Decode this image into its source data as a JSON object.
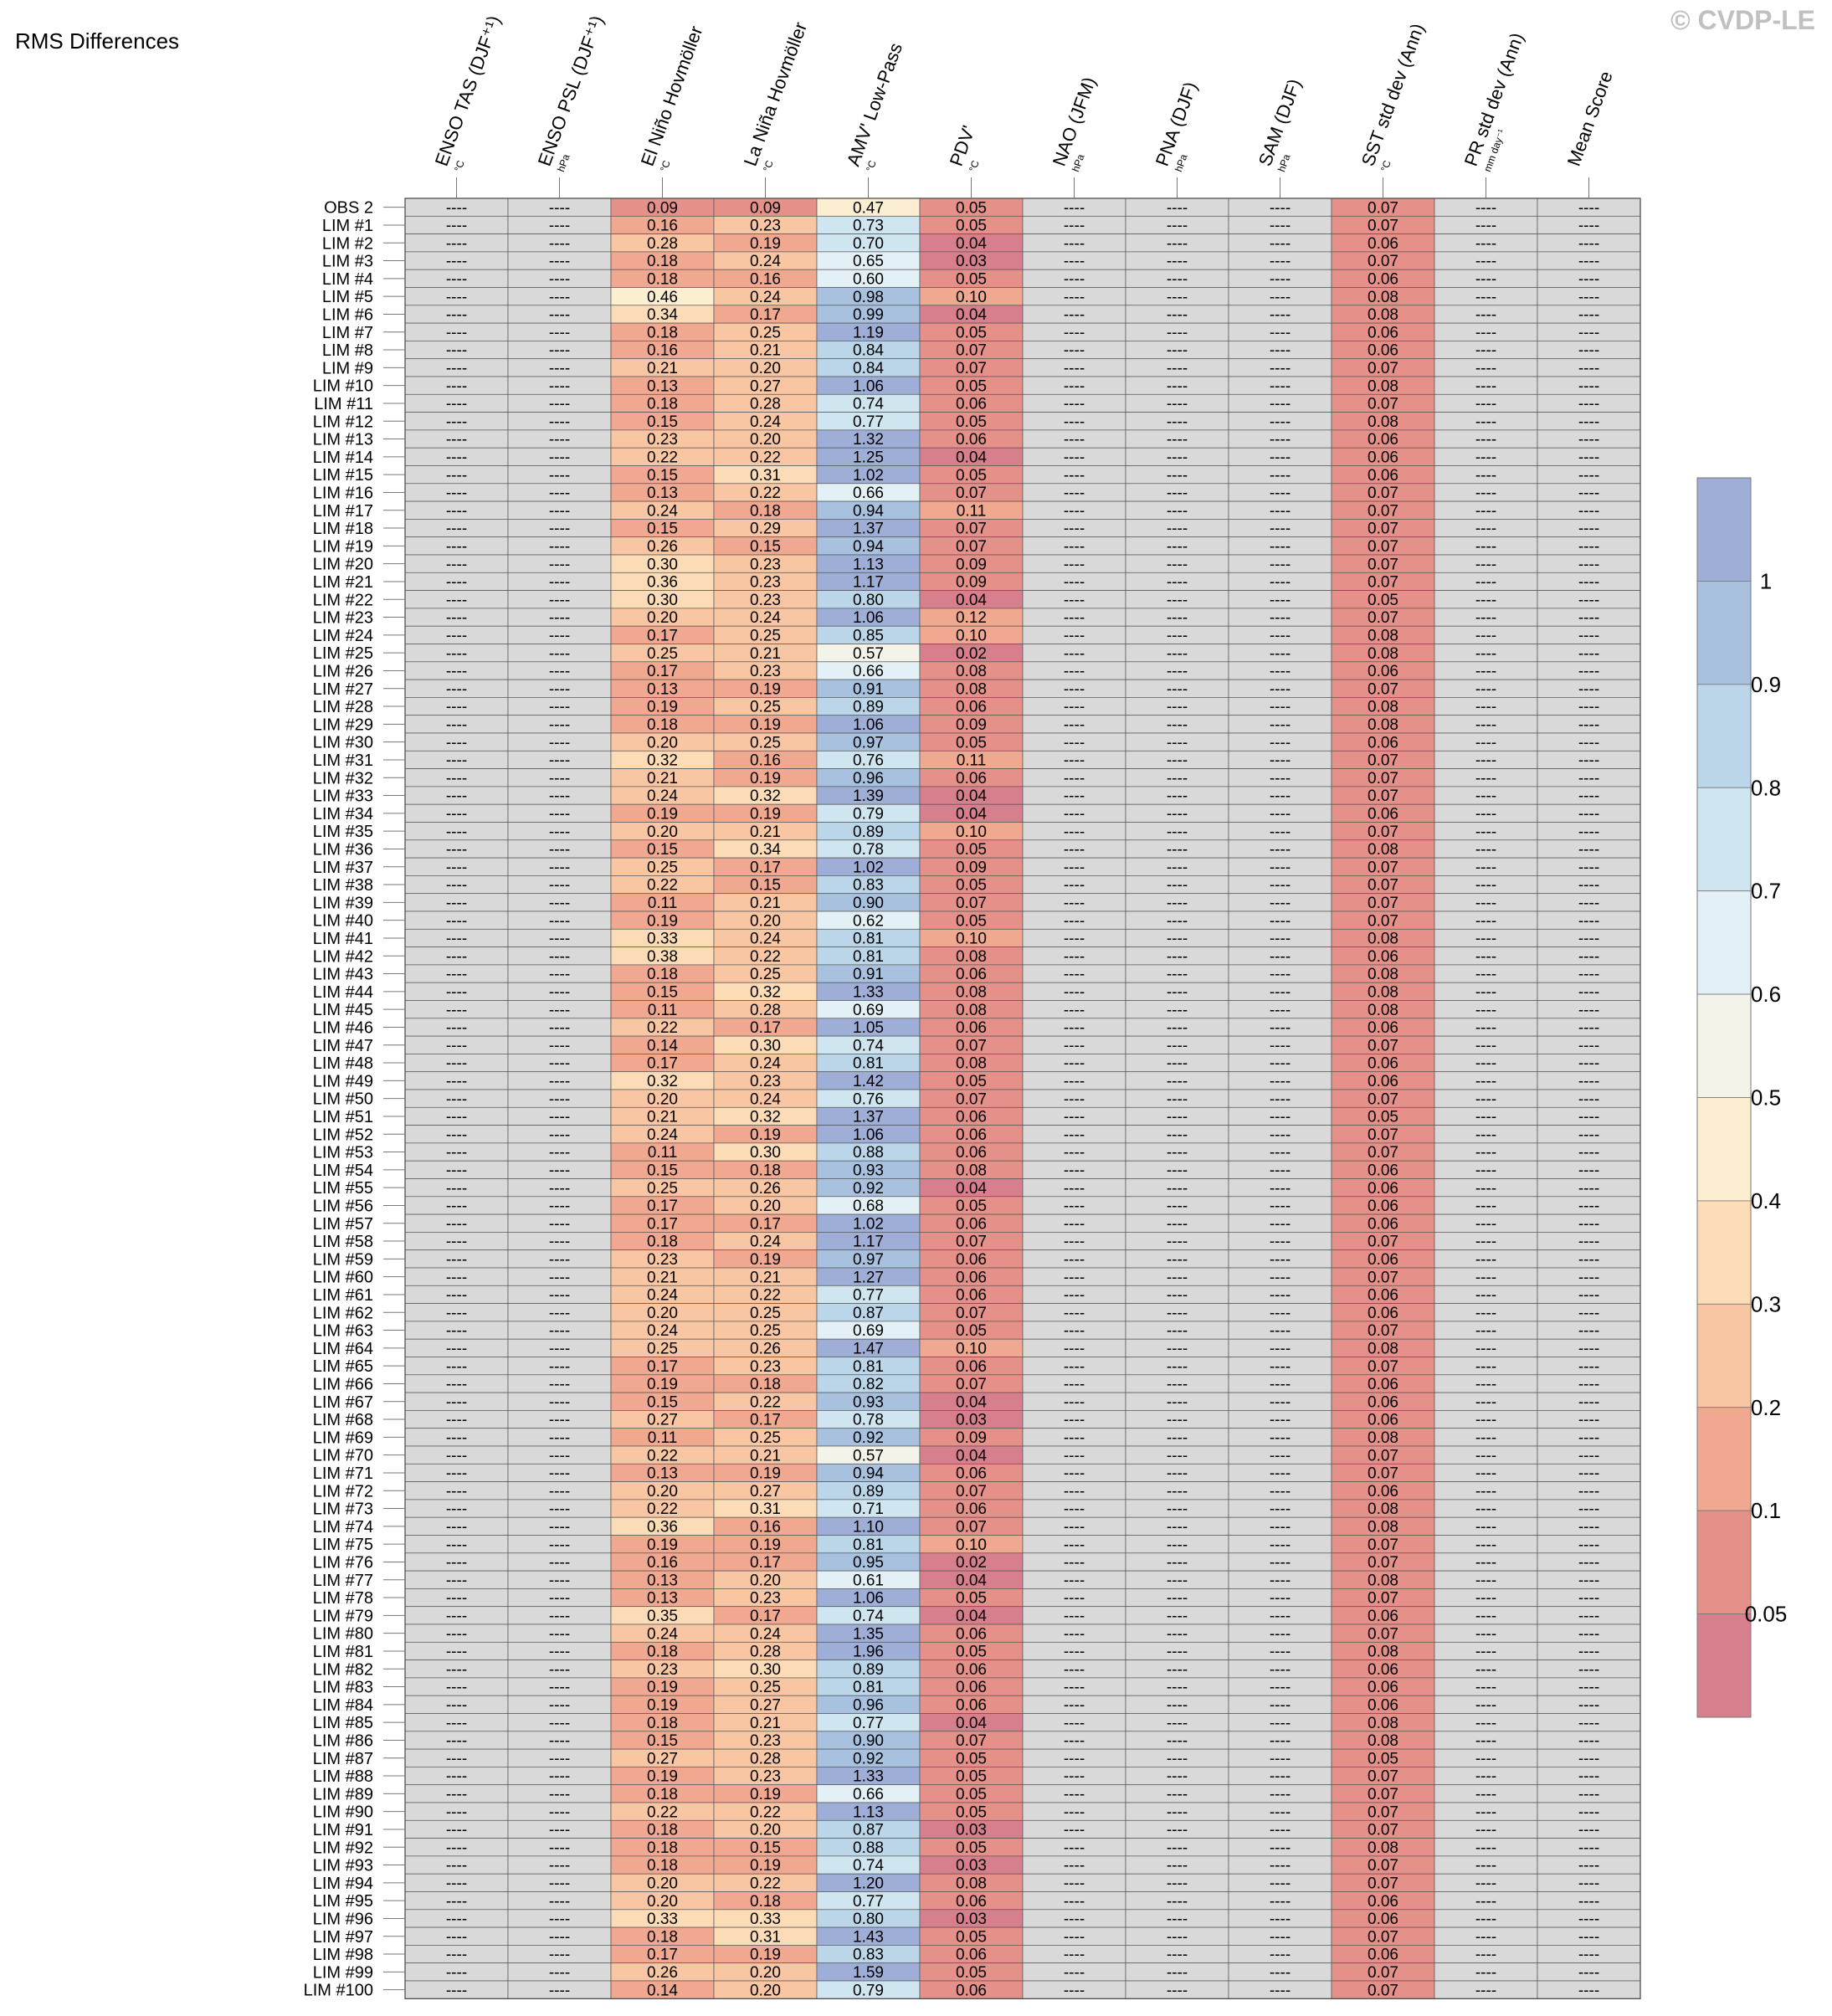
{
  "title": "RMS Differences",
  "watermark": "© CVDP-LE",
  "chart_data": {
    "type": "heatmap",
    "columns": [
      {
        "label": "ENSO TAS (DJF⁺¹)",
        "unit": "°C"
      },
      {
        "label": "ENSO PSL (DJF⁺¹)",
        "unit": "hPa"
      },
      {
        "label": "El Niño Hovmöller",
        "unit": "°C"
      },
      {
        "label": "La Niña Hovmöller",
        "unit": "°C"
      },
      {
        "label": "AMV' Low-Pass",
        "unit": "°C"
      },
      {
        "label": "PDV'",
        "unit": "°C"
      },
      {
        "label": "NAO (JFM)",
        "unit": "hPa"
      },
      {
        "label": "PNA (DJF)",
        "unit": "hPa"
      },
      {
        "label": "SAM (DJF)",
        "unit": "hPa"
      },
      {
        "label": "SST std dev (Ann)",
        "unit": "°C"
      },
      {
        "label": "PR std dev (Ann)",
        "unit": "mm day⁻¹"
      },
      {
        "label": "Mean Score",
        "unit": ""
      }
    ],
    "missing_text": "----",
    "rows": [
      "OBS 2",
      "LIM #1",
      "LIM #2",
      "LIM #3",
      "LIM #4",
      "LIM #5",
      "LIM #6",
      "LIM #7",
      "LIM #8",
      "LIM #9",
      "LIM #10",
      "LIM #11",
      "LIM #12",
      "LIM #13",
      "LIM #14",
      "LIM #15",
      "LIM #16",
      "LIM #17",
      "LIM #18",
      "LIM #19",
      "LIM #20",
      "LIM #21",
      "LIM #22",
      "LIM #23",
      "LIM #24",
      "LIM #25",
      "LIM #26",
      "LIM #27",
      "LIM #28",
      "LIM #29",
      "LIM #30",
      "LIM #31",
      "LIM #32",
      "LIM #33",
      "LIM #34",
      "LIM #35",
      "LIM #36",
      "LIM #37",
      "LIM #38",
      "LIM #39",
      "LIM #40",
      "LIM #41",
      "LIM #42",
      "LIM #43",
      "LIM #44",
      "LIM #45",
      "LIM #46",
      "LIM #47",
      "LIM #48",
      "LIM #49",
      "LIM #50",
      "LIM #51",
      "LIM #52",
      "LIM #53",
      "LIM #54",
      "LIM #55",
      "LIM #56",
      "LIM #57",
      "LIM #58",
      "LIM #59",
      "LIM #60",
      "LIM #61",
      "LIM #62",
      "LIM #63",
      "LIM #64",
      "LIM #65",
      "LIM #66",
      "LIM #67",
      "LIM #68",
      "LIM #69",
      "LIM #70",
      "LIM #71",
      "LIM #72",
      "LIM #73",
      "LIM #74",
      "LIM #75",
      "LIM #76",
      "LIM #77",
      "LIM #78",
      "LIM #79",
      "LIM #80",
      "LIM #81",
      "LIM #82",
      "LIM #83",
      "LIM #84",
      "LIM #85",
      "LIM #86",
      "LIM #87",
      "LIM #88",
      "LIM #89",
      "LIM #90",
      "LIM #91",
      "LIM #92",
      "LIM #93",
      "LIM #94",
      "LIM #95",
      "LIM #96",
      "LIM #97",
      "LIM #98",
      "LIM #99",
      "LIM #100"
    ],
    "values": {
      "El Niño Hovmöller": [
        "0.09",
        "0.16",
        "0.28",
        "0.18",
        "0.18",
        "0.46",
        "0.34",
        "0.18",
        "0.16",
        "0.21",
        "0.13",
        "0.18",
        "0.15",
        "0.23",
        "0.22",
        "0.15",
        "0.13",
        "0.24",
        "0.15",
        "0.26",
        "0.30",
        "0.36",
        "0.30",
        "0.20",
        "0.17",
        "0.25",
        "0.17",
        "0.13",
        "0.19",
        "0.18",
        "0.20",
        "0.32",
        "0.21",
        "0.24",
        "0.19",
        "0.20",
        "0.15",
        "0.25",
        "0.22",
        "0.11",
        "0.19",
        "0.33",
        "0.38",
        "0.18",
        "0.15",
        "0.11",
        "0.22",
        "0.14",
        "0.17",
        "0.32",
        "0.20",
        "0.21",
        "0.24",
        "0.11",
        "0.15",
        "0.25",
        "0.17",
        "0.17",
        "0.18",
        "0.23",
        "0.21",
        "0.24",
        "0.20",
        "0.24",
        "0.25",
        "0.17",
        "0.19",
        "0.15",
        "0.27",
        "0.11",
        "0.22",
        "0.13",
        "0.20",
        "0.22",
        "0.36",
        "0.19",
        "0.16",
        "0.13",
        "0.13",
        "0.35",
        "0.24",
        "0.18",
        "0.23",
        "0.19",
        "0.19",
        "0.18",
        "0.15",
        "0.27",
        "0.19",
        "0.18",
        "0.22",
        "0.18",
        "0.18",
        "0.18",
        "0.20",
        "0.20",
        "0.33",
        "0.18",
        "0.17",
        "0.26",
        "0.14"
      ],
      "La Niña Hovmöller": [
        "0.09",
        "0.23",
        "0.19",
        "0.24",
        "0.16",
        "0.24",
        "0.17",
        "0.25",
        "0.21",
        "0.20",
        "0.27",
        "0.28",
        "0.24",
        "0.20",
        "0.22",
        "0.31",
        "0.22",
        "0.18",
        "0.29",
        "0.15",
        "0.23",
        "0.23",
        "0.23",
        "0.24",
        "0.25",
        "0.21",
        "0.23",
        "0.19",
        "0.25",
        "0.19",
        "0.25",
        "0.16",
        "0.19",
        "0.32",
        "0.19",
        "0.21",
        "0.34",
        "0.17",
        "0.15",
        "0.21",
        "0.20",
        "0.24",
        "0.22",
        "0.25",
        "0.32",
        "0.28",
        "0.17",
        "0.30",
        "0.24",
        "0.23",
        "0.24",
        "0.32",
        "0.19",
        "0.30",
        "0.18",
        "0.26",
        "0.20",
        "0.17",
        "0.24",
        "0.19",
        "0.21",
        "0.22",
        "0.25",
        "0.25",
        "0.26",
        "0.23",
        "0.18",
        "0.22",
        "0.17",
        "0.25",
        "0.21",
        "0.19",
        "0.27",
        "0.31",
        "0.16",
        "0.19",
        "0.17",
        "0.20",
        "0.23",
        "0.17",
        "0.24",
        "0.28",
        "0.30",
        "0.25",
        "0.27",
        "0.21",
        "0.23",
        "0.28",
        "0.23",
        "0.19",
        "0.22",
        "0.20",
        "0.15",
        "0.19",
        "0.22",
        "0.18",
        "0.33",
        "0.31",
        "0.19",
        "0.20",
        "0.20"
      ],
      "AMV' Low-Pass": [
        "0.47",
        "0.73",
        "0.70",
        "0.65",
        "0.60",
        "0.98",
        "0.99",
        "1.19",
        "0.84",
        "0.84",
        "1.06",
        "0.74",
        "0.77",
        "1.32",
        "1.25",
        "1.02",
        "0.66",
        "0.94",
        "1.37",
        "0.94",
        "1.13",
        "1.17",
        "0.80",
        "1.06",
        "0.85",
        "0.57",
        "0.66",
        "0.91",
        "0.89",
        "1.06",
        "0.97",
        "0.76",
        "0.96",
        "1.39",
        "0.79",
        "0.89",
        "0.78",
        "1.02",
        "0.83",
        "0.90",
        "0.62",
        "0.81",
        "0.81",
        "0.91",
        "1.33",
        "0.69",
        "1.05",
        "0.74",
        "0.81",
        "1.42",
        "0.76",
        "1.37",
        "1.06",
        "0.88",
        "0.93",
        "0.92",
        "0.68",
        "1.02",
        "1.17",
        "0.97",
        "1.27",
        "0.77",
        "0.87",
        "0.69",
        "1.47",
        "0.81",
        "0.82",
        "0.93",
        "0.78",
        "0.92",
        "0.57",
        "0.94",
        "0.89",
        "0.71",
        "1.10",
        "0.81",
        "0.95",
        "0.61",
        "1.06",
        "0.74",
        "1.35",
        "1.96",
        "0.89",
        "0.81",
        "0.96",
        "0.77",
        "0.90",
        "0.92",
        "1.33",
        "0.66",
        "1.13",
        "0.87",
        "0.88",
        "0.74",
        "1.20",
        "0.77",
        "0.80",
        "1.43",
        "0.83",
        "1.59",
        "0.79"
      ],
      "PDV'": [
        "0.05",
        "0.05",
        "0.04",
        "0.03",
        "0.05",
        "0.10",
        "0.04",
        "0.05",
        "0.07",
        "0.07",
        "0.05",
        "0.06",
        "0.05",
        "0.06",
        "0.04",
        "0.05",
        "0.07",
        "0.11",
        "0.07",
        "0.07",
        "0.09",
        "0.09",
        "0.04",
        "0.12",
        "0.10",
        "0.02",
        "0.08",
        "0.08",
        "0.06",
        "0.09",
        "0.05",
        "0.11",
        "0.06",
        "0.04",
        "0.04",
        "0.10",
        "0.05",
        "0.09",
        "0.05",
        "0.07",
        "0.05",
        "0.10",
        "0.08",
        "0.06",
        "0.08",
        "0.08",
        "0.06",
        "0.07",
        "0.08",
        "0.05",
        "0.07",
        "0.06",
        "0.06",
        "0.06",
        "0.08",
        "0.04",
        "0.05",
        "0.06",
        "0.07",
        "0.06",
        "0.06",
        "0.06",
        "0.07",
        "0.05",
        "0.10",
        "0.06",
        "0.07",
        "0.04",
        "0.03",
        "0.09",
        "0.04",
        "0.06",
        "0.07",
        "0.06",
        "0.07",
        "0.10",
        "0.02",
        "0.04",
        "0.05",
        "0.04",
        "0.06",
        "0.05",
        "0.06",
        "0.06",
        "0.06",
        "0.04",
        "0.07",
        "0.05",
        "0.05",
        "0.05",
        "0.05",
        "0.03",
        "0.05",
        "0.03",
        "0.08",
        "0.06",
        "0.03",
        "0.05",
        "0.06",
        "0.05",
        "0.06"
      ],
      "SST std dev (Ann)": [
        "0.07",
        "0.07",
        "0.06",
        "0.07",
        "0.06",
        "0.08",
        "0.08",
        "0.06",
        "0.06",
        "0.07",
        "0.08",
        "0.07",
        "0.08",
        "0.06",
        "0.06",
        "0.06",
        "0.07",
        "0.07",
        "0.07",
        "0.07",
        "0.07",
        "0.07",
        "0.05",
        "0.07",
        "0.08",
        "0.08",
        "0.06",
        "0.07",
        "0.08",
        "0.08",
        "0.06",
        "0.07",
        "0.07",
        "0.07",
        "0.06",
        "0.07",
        "0.08",
        "0.07",
        "0.07",
        "0.07",
        "0.07",
        "0.08",
        "0.06",
        "0.08",
        "0.08",
        "0.08",
        "0.06",
        "0.07",
        "0.06",
        "0.06",
        "0.07",
        "0.05",
        "0.07",
        "0.07",
        "0.06",
        "0.06",
        "0.06",
        "0.06",
        "0.07",
        "0.06",
        "0.07",
        "0.06",
        "0.06",
        "0.07",
        "0.08",
        "0.07",
        "0.06",
        "0.06",
        "0.06",
        "0.08",
        "0.07",
        "0.07",
        "0.06",
        "0.08",
        "0.08",
        "0.07",
        "0.07",
        "0.08",
        "0.07",
        "0.06",
        "0.07",
        "0.08",
        "0.06",
        "0.06",
        "0.06",
        "0.08",
        "0.08",
        "0.05",
        "0.07",
        "0.07",
        "0.07",
        "0.07",
        "0.08",
        "0.07",
        "0.07",
        "0.06",
        "0.06",
        "0.07",
        "0.06",
        "0.07",
        "0.07"
      ]
    },
    "colorbar": {
      "tick_labels": [
        "1",
        "0.9",
        "0.8",
        "0.7",
        "0.6",
        "0.5",
        "0.4",
        "0.3",
        "0.2",
        "0.1",
        "0.05"
      ],
      "bins": [
        {
          "min": 0,
          "max": 0.05,
          "color": "#d77f8d"
        },
        {
          "min": 0.05,
          "max": 0.1,
          "color": "#e6908a"
        },
        {
          "min": 0.1,
          "max": 0.2,
          "color": "#f1a890"
        },
        {
          "min": 0.2,
          "max": 0.3,
          "color": "#f8c6a3"
        },
        {
          "min": 0.3,
          "max": 0.4,
          "color": "#fbdcb7"
        },
        {
          "min": 0.4,
          "max": 0.5,
          "color": "#fcefd1"
        },
        {
          "min": 0.5,
          "max": 0.6,
          "color": "#f3f3e9"
        },
        {
          "min": 0.6,
          "max": 0.7,
          "color": "#e3f1f6"
        },
        {
          "min": 0.7,
          "max": 0.8,
          "color": "#cfe5ef"
        },
        {
          "min": 0.8,
          "max": 0.9,
          "color": "#bad6e8"
        },
        {
          "min": 0.9,
          "max": 1.0,
          "color": "#a7c1df"
        },
        {
          "min": 1.0,
          "max": 99,
          "color": "#9eaed6"
        }
      ],
      "missing_color": "#d9d9d9"
    }
  }
}
